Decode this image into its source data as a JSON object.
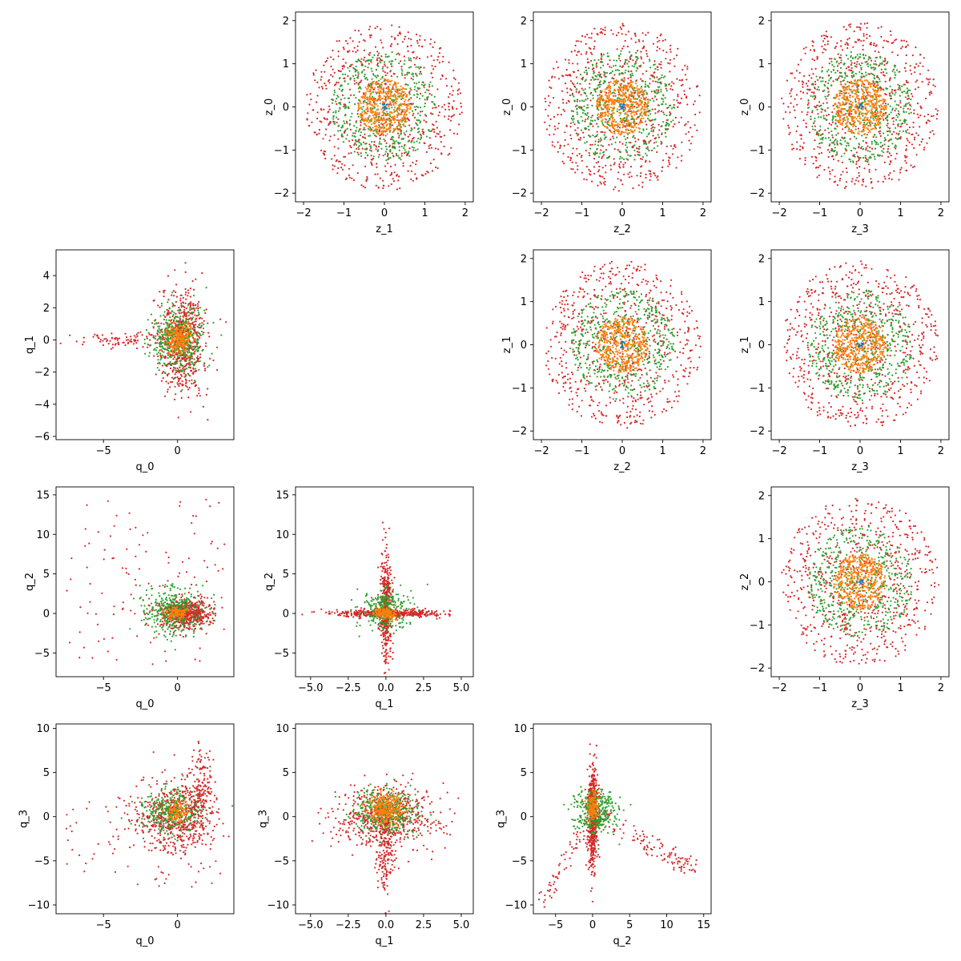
{
  "figure": {
    "type": "scatter-matrix"
  },
  "colors": {
    "c_blue": "#1f77b4",
    "c_orange": "#ff7f0e",
    "c_green": "#2ca02c",
    "c_red": "#d62728"
  },
  "chart_data": [
    {
      "type": "scatter",
      "row": 0,
      "col": 1,
      "xlabel": "z_1",
      "ylabel": "z_0",
      "xlim": [
        -2.2,
        2.2
      ],
      "ylim": [
        -2.2,
        2.2
      ],
      "xticks": [
        -2,
        -1,
        0,
        1,
        2
      ],
      "xtick_labels": [
        "−2",
        "−1",
        "0",
        "1",
        "2"
      ],
      "yticks": [
        -2,
        -1,
        0,
        1,
        2
      ],
      "ytick_labels": [
        "−2",
        "−1",
        "0",
        "1",
        "2"
      ],
      "grid": false,
      "series": [
        {
          "color": "c_red",
          "distribution": "uniform-disk",
          "center": [
            0,
            0
          ],
          "radius": 1.95,
          "count": 700
        },
        {
          "color": "c_green",
          "distribution": "uniform-disk",
          "center": [
            0,
            0
          ],
          "radius": 1.3,
          "count": 500
        },
        {
          "color": "c_orange",
          "distribution": "uniform-disk",
          "center": [
            0,
            0
          ],
          "radius": 0.65,
          "count": 450
        },
        {
          "color": "c_blue",
          "distribution": "uniform-disk",
          "center": [
            0,
            0
          ],
          "radius": 0.08,
          "count": 12
        }
      ]
    },
    {
      "type": "scatter",
      "row": 0,
      "col": 2,
      "xlabel": "z_2",
      "ylabel": "z_0",
      "xlim": [
        -2.2,
        2.2
      ],
      "ylim": [
        -2.2,
        2.2
      ],
      "xticks": [
        -2,
        -1,
        0,
        1,
        2
      ],
      "xtick_labels": [
        "−2",
        "−1",
        "0",
        "1",
        "2"
      ],
      "yticks": [
        -2,
        -1,
        0,
        1,
        2
      ],
      "ytick_labels": [
        "−2",
        "−1",
        "0",
        "1",
        "2"
      ],
      "grid": false,
      "series": [
        {
          "color": "c_red",
          "distribution": "uniform-disk",
          "center": [
            0,
            0
          ],
          "radius": 1.95,
          "count": 700
        },
        {
          "color": "c_green",
          "distribution": "uniform-disk",
          "center": [
            0,
            0
          ],
          "radius": 1.3,
          "count": 500
        },
        {
          "color": "c_orange",
          "distribution": "uniform-disk",
          "center": [
            0,
            0
          ],
          "radius": 0.65,
          "count": 450
        },
        {
          "color": "c_blue",
          "distribution": "uniform-disk",
          "center": [
            0,
            0
          ],
          "radius": 0.08,
          "count": 12
        }
      ]
    },
    {
      "type": "scatter",
      "row": 0,
      "col": 3,
      "xlabel": "z_3",
      "ylabel": "z_0",
      "xlim": [
        -2.2,
        2.2
      ],
      "ylim": [
        -2.2,
        2.2
      ],
      "xticks": [
        -2,
        -1,
        0,
        1,
        2
      ],
      "xtick_labels": [
        "−2",
        "−1",
        "0",
        "1",
        "2"
      ],
      "yticks": [
        -2,
        -1,
        0,
        1,
        2
      ],
      "ytick_labels": [
        "−2",
        "−1",
        "0",
        "1",
        "2"
      ],
      "grid": false,
      "series": [
        {
          "color": "c_red",
          "distribution": "uniform-disk",
          "center": [
            0,
            0
          ],
          "radius": 1.95,
          "count": 700
        },
        {
          "color": "c_green",
          "distribution": "uniform-disk",
          "center": [
            0,
            0
          ],
          "radius": 1.3,
          "count": 500
        },
        {
          "color": "c_orange",
          "distribution": "uniform-disk",
          "center": [
            0,
            0
          ],
          "radius": 0.65,
          "count": 450
        },
        {
          "color": "c_blue",
          "distribution": "uniform-disk",
          "center": [
            0,
            0
          ],
          "radius": 0.08,
          "count": 12
        }
      ]
    },
    {
      "type": "scatter",
      "row": 1,
      "col": 0,
      "xlabel": "q_0",
      "ylabel": "q_1",
      "xlim": [
        -8.2,
        3.8
      ],
      "ylim": [
        -6.2,
        5.6
      ],
      "xticks": [
        -5,
        0
      ],
      "xtick_labels": [
        "−5",
        "0"
      ],
      "yticks": [
        -6,
        -4,
        -2,
        0,
        2,
        4
      ],
      "ytick_labels": [
        "−6",
        "−4",
        "−2",
        "0",
        "2",
        "4"
      ],
      "grid": false,
      "series": [
        {
          "color": "c_red",
          "distribution": "gaussian",
          "center": [
            0.3,
            0
          ],
          "sigma": [
            0.8,
            1.6
          ],
          "count": 700
        },
        {
          "color": "c_red",
          "distribution": "gaussian",
          "center": [
            -3.5,
            0
          ],
          "sigma": [
            1.6,
            0.25
          ],
          "count": 90
        },
        {
          "color": "c_green",
          "distribution": "gaussian",
          "center": [
            0,
            0
          ],
          "sigma": [
            0.9,
            1.0
          ],
          "count": 450
        },
        {
          "color": "c_orange",
          "distribution": "gaussian",
          "center": [
            0.1,
            0.1
          ],
          "sigma": [
            0.4,
            0.5
          ],
          "count": 250
        }
      ]
    },
    {
      "type": "scatter",
      "row": 1,
      "col": 2,
      "xlabel": "z_2",
      "ylabel": "z_1",
      "xlim": [
        -2.2,
        2.2
      ],
      "ylim": [
        -2.2,
        2.2
      ],
      "xticks": [
        -2,
        -1,
        0,
        1,
        2
      ],
      "xtick_labels": [
        "−2",
        "−1",
        "0",
        "1",
        "2"
      ],
      "yticks": [
        -2,
        -1,
        0,
        1,
        2
      ],
      "ytick_labels": [
        "−2",
        "−1",
        "0",
        "1",
        "2"
      ],
      "grid": false,
      "series": [
        {
          "color": "c_red",
          "distribution": "uniform-disk",
          "center": [
            0,
            0
          ],
          "radius": 1.95,
          "count": 700
        },
        {
          "color": "c_green",
          "distribution": "uniform-disk",
          "center": [
            0,
            0
          ],
          "radius": 1.3,
          "count": 500
        },
        {
          "color": "c_orange",
          "distribution": "uniform-disk",
          "center": [
            0,
            0
          ],
          "radius": 0.65,
          "count": 450
        },
        {
          "color": "c_blue",
          "distribution": "uniform-disk",
          "center": [
            0,
            0
          ],
          "radius": 0.08,
          "count": 12
        }
      ]
    },
    {
      "type": "scatter",
      "row": 1,
      "col": 3,
      "xlabel": "z_3",
      "ylabel": "z_1",
      "xlim": [
        -2.2,
        2.2
      ],
      "ylim": [
        -2.2,
        2.2
      ],
      "xticks": [
        -2,
        -1,
        0,
        1,
        2
      ],
      "xtick_labels": [
        "−2",
        "−1",
        "0",
        "1",
        "2"
      ],
      "yticks": [
        -2,
        -1,
        0,
        1,
        2
      ],
      "ytick_labels": [
        "−2",
        "−1",
        "0",
        "1",
        "2"
      ],
      "grid": false,
      "series": [
        {
          "color": "c_red",
          "distribution": "uniform-disk",
          "center": [
            0,
            0
          ],
          "radius": 1.95,
          "count": 700
        },
        {
          "color": "c_green",
          "distribution": "uniform-disk",
          "center": [
            0,
            0
          ],
          "radius": 1.3,
          "count": 500
        },
        {
          "color": "c_orange",
          "distribution": "uniform-disk",
          "center": [
            0,
            0
          ],
          "radius": 0.65,
          "count": 450
        },
        {
          "color": "c_blue",
          "distribution": "uniform-disk",
          "center": [
            0,
            0
          ],
          "radius": 0.08,
          "count": 12
        }
      ]
    },
    {
      "type": "scatter",
      "row": 2,
      "col": 0,
      "xlabel": "q_0",
      "ylabel": "q_2",
      "xlim": [
        -8.2,
        3.8
      ],
      "ylim": [
        -8,
        16
      ],
      "xticks": [
        -5,
        0
      ],
      "xtick_labels": [
        "−5",
        "0"
      ],
      "yticks": [
        -5,
        0,
        5,
        10,
        15
      ],
      "ytick_labels": [
        "−5",
        "0",
        "5",
        "10",
        "15"
      ],
      "grid": false,
      "series": [
        {
          "color": "c_red",
          "distribution": "gaussian",
          "center": [
            0.5,
            0
          ],
          "sigma": [
            0.9,
            0.9
          ],
          "count": 650
        },
        {
          "color": "c_red",
          "distribution": "uniform-rect",
          "x": [
            -7.5,
            3.5
          ],
          "y": [
            -7,
            14.5
          ],
          "count": 110
        },
        {
          "color": "c_green",
          "distribution": "gaussian",
          "center": [
            -0.3,
            0.3
          ],
          "sigma": [
            1.1,
            1.6
          ],
          "count": 350
        },
        {
          "color": "c_orange",
          "distribution": "gaussian",
          "center": [
            0,
            0
          ],
          "sigma": [
            0.4,
            0.4
          ],
          "count": 120
        }
      ]
    },
    {
      "type": "scatter",
      "row": 2,
      "col": 1,
      "xlabel": "q_1",
      "ylabel": "q_2",
      "xlim": [
        -6,
        5.8
      ],
      "ylim": [
        -8,
        16
      ],
      "xticks": [
        -5,
        -2.5,
        0,
        2.5,
        5
      ],
      "xtick_labels": [
        "−5.0",
        "−2.5",
        "0.0",
        "2.5",
        "5.0"
      ],
      "yticks": [
        -5,
        0,
        5,
        10,
        15
      ],
      "ytick_labels": [
        "−5",
        "0",
        "5",
        "10",
        "15"
      ],
      "grid": false,
      "series": [
        {
          "color": "c_red",
          "distribution": "gaussian",
          "center": [
            0,
            0
          ],
          "sigma": [
            1.8,
            0.25
          ],
          "count": 450
        },
        {
          "color": "c_red",
          "distribution": "gaussian",
          "center": [
            0,
            0.5
          ],
          "sigma": [
            0.2,
            3.2
          ],
          "count": 450
        },
        {
          "color": "c_green",
          "distribution": "gaussian",
          "center": [
            0,
            0.5
          ],
          "sigma": [
            0.8,
            1.2
          ],
          "count": 300
        },
        {
          "color": "c_orange",
          "distribution": "gaussian",
          "center": [
            0,
            0
          ],
          "sigma": [
            0.4,
            0.4
          ],
          "count": 150
        }
      ]
    },
    {
      "type": "scatter",
      "row": 2,
      "col": 3,
      "xlabel": "z_3",
      "ylabel": "z_2",
      "xlim": [
        -2.2,
        2.2
      ],
      "ylim": [
        -2.2,
        2.2
      ],
      "xticks": [
        -2,
        -1,
        0,
        1,
        2
      ],
      "xtick_labels": [
        "−2",
        "−1",
        "0",
        "1",
        "2"
      ],
      "yticks": [
        -2,
        -1,
        0,
        1,
        2
      ],
      "ytick_labels": [
        "−2",
        "−1",
        "0",
        "1",
        "2"
      ],
      "grid": false,
      "series": [
        {
          "color": "c_red",
          "distribution": "uniform-disk",
          "center": [
            0,
            0
          ],
          "radius": 1.95,
          "count": 700
        },
        {
          "color": "c_green",
          "distribution": "uniform-disk",
          "center": [
            0,
            0
          ],
          "radius": 1.3,
          "count": 500
        },
        {
          "color": "c_orange",
          "distribution": "uniform-disk",
          "center": [
            0,
            0
          ],
          "radius": 0.65,
          "count": 450
        },
        {
          "color": "c_blue",
          "distribution": "uniform-disk",
          "center": [
            0,
            0
          ],
          "radius": 0.08,
          "count": 12
        }
      ]
    },
    {
      "type": "scatter",
      "row": 3,
      "col": 0,
      "xlabel": "q_0",
      "ylabel": "q_3",
      "xlim": [
        -8.2,
        3.8
      ],
      "ylim": [
        -11,
        10.5
      ],
      "xticks": [
        -5,
        0
      ],
      "xtick_labels": [
        "−5",
        "0"
      ],
      "yticks": [
        -10,
        -5,
        0,
        5,
        10
      ],
      "ytick_labels": [
        "−10",
        "−5",
        "0",
        "5",
        "10"
      ],
      "grid": false,
      "series": [
        {
          "color": "c_red",
          "distribution": "gaussian",
          "center": [
            -0.3,
            0
          ],
          "sigma": [
            1.2,
            2.0
          ],
          "count": 550
        },
        {
          "color": "c_red",
          "distribution": "gaussian",
          "center": [
            1.5,
            2.5
          ],
          "sigma": [
            0.5,
            2.8
          ],
          "count": 220
        },
        {
          "color": "c_red",
          "distribution": "uniform-rect",
          "x": [
            -7.5,
            3.0
          ],
          "y": [
            -8,
            3
          ],
          "count": 80
        },
        {
          "color": "c_green",
          "distribution": "gaussian",
          "center": [
            -0.5,
            0.5
          ],
          "sigma": [
            1.0,
            1.2
          ],
          "count": 300
        },
        {
          "color": "c_orange",
          "distribution": "gaussian",
          "center": [
            0,
            0.5
          ],
          "sigma": [
            0.4,
            0.6
          ],
          "count": 100
        }
      ]
    },
    {
      "type": "scatter",
      "row": 3,
      "col": 1,
      "xlabel": "q_1",
      "ylabel": "q_3",
      "xlim": [
        -6,
        5.8
      ],
      "ylim": [
        -11,
        10.5
      ],
      "xticks": [
        -5,
        -2.5,
        0,
        2.5,
        5
      ],
      "xtick_labels": [
        "−5.0",
        "−2.5",
        "0.0",
        "2.5",
        "5.0"
      ],
      "yticks": [
        -10,
        -5,
        0,
        5,
        10
      ],
      "ytick_labels": [
        "−10",
        "−5",
        "0",
        "5",
        "10"
      ],
      "grid": false,
      "series": [
        {
          "color": "c_red",
          "distribution": "gaussian",
          "center": [
            0,
            0
          ],
          "sigma": [
            1.6,
            1.8
          ],
          "count": 650
        },
        {
          "color": "c_red",
          "distribution": "gaussian",
          "center": [
            0,
            -4
          ],
          "sigma": [
            0.3,
            2.5
          ],
          "count": 160
        },
        {
          "color": "c_green",
          "distribution": "gaussian",
          "center": [
            0,
            0.5
          ],
          "sigma": [
            1.1,
            1.2
          ],
          "count": 400
        },
        {
          "color": "c_orange",
          "distribution": "gaussian",
          "center": [
            0,
            1
          ],
          "sigma": [
            0.6,
            0.9
          ],
          "count": 300
        }
      ]
    },
    {
      "type": "scatter",
      "row": 3,
      "col": 2,
      "xlabel": "q_2",
      "ylabel": "q_3",
      "xlim": [
        -8,
        16
      ],
      "ylim": [
        -11,
        10.5
      ],
      "xticks": [
        -5,
        0,
        5,
        10,
        15
      ],
      "xtick_labels": [
        "−5",
        "0",
        "5",
        "10",
        "15"
      ],
      "yticks": [
        -10,
        -5,
        0,
        5,
        10
      ],
      "ytick_labels": [
        "−10",
        "−5",
        "0",
        "5",
        "10"
      ],
      "grid": false,
      "series": [
        {
          "color": "c_red",
          "distribution": "gaussian",
          "center": [
            0,
            0
          ],
          "sigma": [
            0.35,
            2.8
          ],
          "count": 600
        },
        {
          "color": "c_red",
          "distribution": "line-band",
          "from": [
            1,
            0
          ],
          "to": [
            14,
            -6
          ],
          "width": 1.2,
          "count": 120
        },
        {
          "color": "c_red",
          "distribution": "line-band",
          "from": [
            -1,
            -1
          ],
          "to": [
            -7,
            -10
          ],
          "width": 1.0,
          "count": 60
        },
        {
          "color": "c_green",
          "distribution": "gaussian",
          "center": [
            0.5,
            0.5
          ],
          "sigma": [
            1.5,
            1.3
          ],
          "count": 350
        },
        {
          "color": "c_orange",
          "distribution": "gaussian",
          "center": [
            0,
            1
          ],
          "sigma": [
            0.4,
            0.8
          ],
          "count": 150
        }
      ]
    }
  ]
}
